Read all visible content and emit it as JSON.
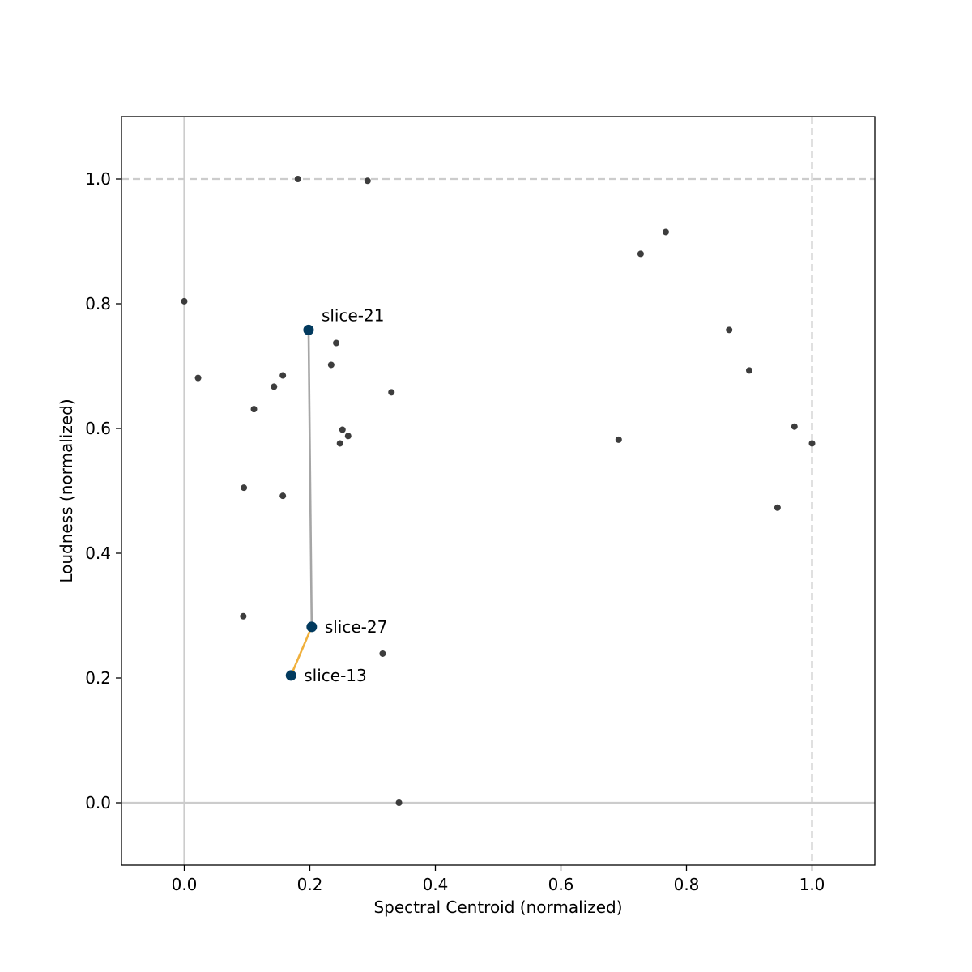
{
  "chart_data": {
    "type": "scatter",
    "title": "",
    "xlabel": "Spectral Centroid (normalized)",
    "ylabel": "Loudness (normalized)",
    "xlim": [
      -0.1,
      1.1
    ],
    "ylim": [
      -0.1,
      1.1
    ],
    "xticks": [
      0.0,
      0.2,
      0.4,
      0.6,
      0.8,
      1.0
    ],
    "yticks": [
      0.0,
      0.2,
      0.4,
      0.6,
      0.8,
      1.0
    ],
    "xtick_labels": [
      "0.0",
      "0.2",
      "0.4",
      "0.6",
      "0.8",
      "1.0"
    ],
    "ytick_labels": [
      "0.0",
      "0.2",
      "0.4",
      "0.6",
      "0.8",
      "1.0"
    ],
    "grid": false,
    "reference_lines": [
      {
        "orientation": "vertical",
        "value": 0.0,
        "style": "solid"
      },
      {
        "orientation": "horizontal",
        "value": 0.0,
        "style": "solid"
      },
      {
        "orientation": "vertical",
        "value": 1.0,
        "style": "dashed"
      },
      {
        "orientation": "horizontal",
        "value": 1.0,
        "style": "dashed"
      }
    ],
    "points": [
      {
        "x": 0.181,
        "y": 1.0
      },
      {
        "x": 0.292,
        "y": 0.997
      },
      {
        "x": 0.767,
        "y": 0.915
      },
      {
        "x": 0.727,
        "y": 0.88
      },
      {
        "x": 0.0,
        "y": 0.804
      },
      {
        "x": 0.868,
        "y": 0.758
      },
      {
        "x": 0.242,
        "y": 0.737
      },
      {
        "x": 0.234,
        "y": 0.702
      },
      {
        "x": 0.9,
        "y": 0.693
      },
      {
        "x": 0.157,
        "y": 0.685
      },
      {
        "x": 0.022,
        "y": 0.681
      },
      {
        "x": 0.143,
        "y": 0.667
      },
      {
        "x": 0.33,
        "y": 0.658
      },
      {
        "x": 0.111,
        "y": 0.631
      },
      {
        "x": 0.972,
        "y": 0.603
      },
      {
        "x": 0.252,
        "y": 0.598
      },
      {
        "x": 0.261,
        "y": 0.588
      },
      {
        "x": 0.692,
        "y": 0.582
      },
      {
        "x": 0.248,
        "y": 0.576
      },
      {
        "x": 1.0,
        "y": 0.576
      },
      {
        "x": 0.095,
        "y": 0.505
      },
      {
        "x": 0.157,
        "y": 0.492
      },
      {
        "x": 0.945,
        "y": 0.473
      },
      {
        "x": 0.094,
        "y": 0.299
      },
      {
        "x": 0.316,
        "y": 0.239
      },
      {
        "x": 0.342,
        "y": 0.0
      }
    ],
    "highlighted": [
      {
        "label": "slice-21",
        "x": 0.198,
        "y": 0.758,
        "label_pos": "above-right"
      },
      {
        "label": "slice-27",
        "x": 0.203,
        "y": 0.282,
        "label_pos": "right"
      },
      {
        "label": "slice-13",
        "x": 0.17,
        "y": 0.204,
        "label_pos": "right"
      }
    ],
    "path_segments": [
      {
        "from": "slice-21",
        "to": "slice-27",
        "color": "#a6a6a6"
      },
      {
        "from": "slice-27",
        "to": "slice-13",
        "color": "#f0b03c"
      }
    ],
    "colors": {
      "point": "#333333",
      "highlight": "#023a5e",
      "reference_line": "#cccccc"
    }
  }
}
